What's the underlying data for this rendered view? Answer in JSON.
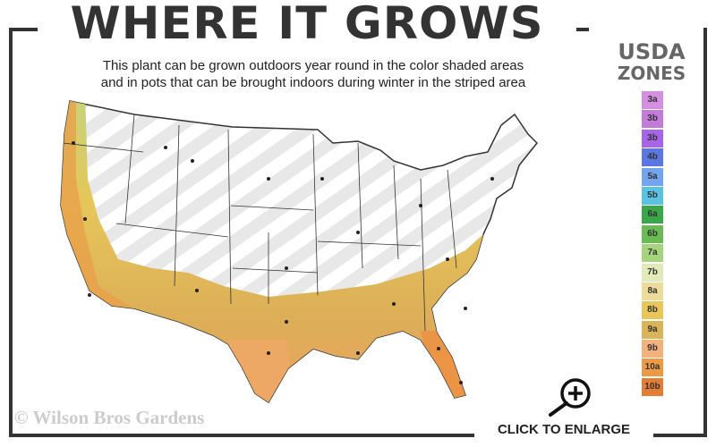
{
  "header": {
    "title": "WHERE IT GROWS",
    "subtitle_line1": "This plant can be grown outdoors year round in the color shaded areas",
    "subtitle_line2": "and in pots that can be brought indoors during winter in the striped area"
  },
  "legend": {
    "title_line1": "USDA",
    "title_line2": "ZONES",
    "zones": [
      {
        "label": "3a",
        "color": "#d58fe0"
      },
      {
        "label": "3b",
        "color": "#c47ad8"
      },
      {
        "label": "3b",
        "color": "#a764e8"
      },
      {
        "label": "4b",
        "color": "#5b78e2"
      },
      {
        "label": "5a",
        "color": "#72a4ef"
      },
      {
        "label": "5b",
        "color": "#58c4e2"
      },
      {
        "label": "6a",
        "color": "#3aa64a"
      },
      {
        "label": "6b",
        "color": "#6abb55"
      },
      {
        "label": "7a",
        "color": "#a6d47c"
      },
      {
        "label": "7b",
        "color": "#e2eab8"
      },
      {
        "label": "8a",
        "color": "#ecdc9c"
      },
      {
        "label": "8b",
        "color": "#e8c65a"
      },
      {
        "label": "9a",
        "color": "#d9b458"
      },
      {
        "label": "9b",
        "color": "#f1b27c"
      },
      {
        "label": "10a",
        "color": "#ec9a44"
      },
      {
        "label": "10b",
        "color": "#e47e34"
      }
    ]
  },
  "map": {
    "grown_outdoors_zones": [
      "7b",
      "8a",
      "8b",
      "9a",
      "9b",
      "10a",
      "10b"
    ],
    "striped_area": "pots brought indoors during winter"
  },
  "footer": {
    "copyright": "© Wilson Bros Gardens",
    "enlarge_label": "CLICK TO ENLARGE",
    "enlarge_icon": "zoom-in-magnifier-icon"
  }
}
